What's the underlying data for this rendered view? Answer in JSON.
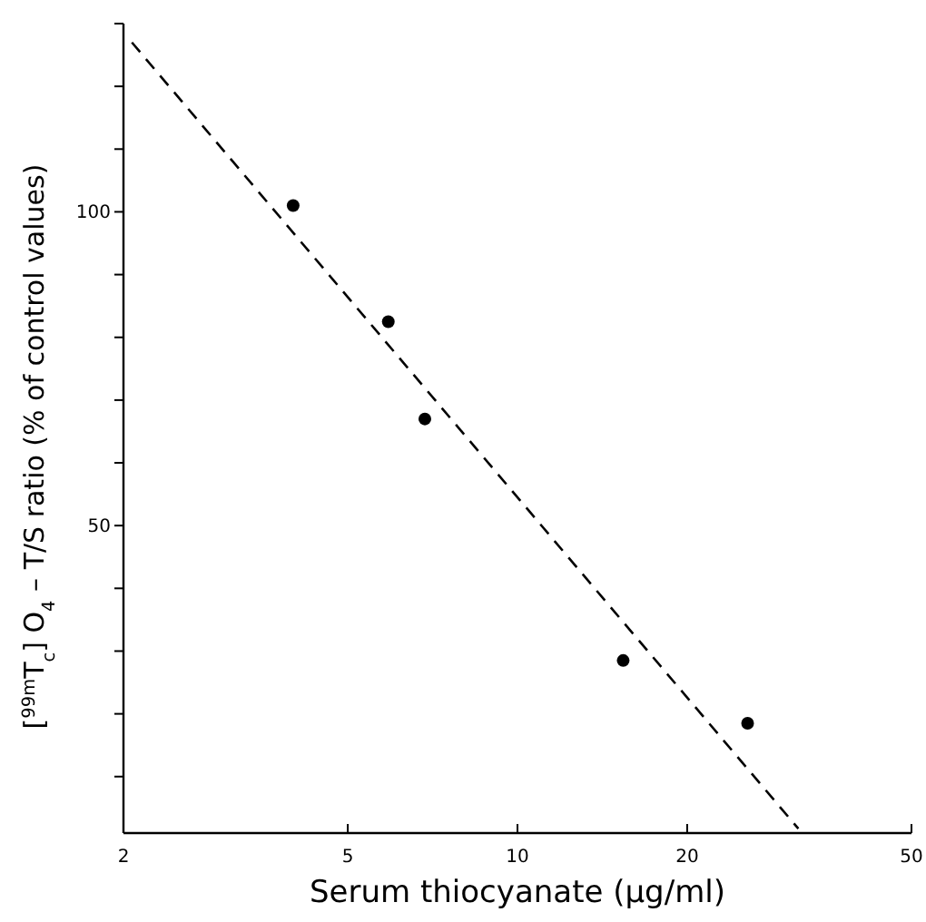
{
  "chart_data": {
    "type": "scatter",
    "xlabel": "Serum thiocyanate (μg/ml)",
    "ylabel": "[$^{99m}$T$_{c}$] O$_{4}$ – T/S ratio (% of control values)",
    "log": "x",
    "xlim": [
      2,
      50
    ],
    "xticks": [
      2,
      5,
      10,
      20,
      50
    ],
    "ylim": [
      1,
      130
    ],
    "yticks": [
      {
        "value": 10,
        "label": null
      },
      {
        "value": 20,
        "label": null
      },
      {
        "value": 30,
        "label": null
      },
      {
        "value": 40,
        "label": null
      },
      50,
      {
        "value": 60,
        "label": null
      },
      {
        "value": 70,
        "label": null
      },
      {
        "value": 80,
        "label": null
      },
      {
        "value": 90,
        "label": null
      },
      100,
      {
        "value": 110,
        "label": null
      },
      {
        "value": 120,
        "label": null
      },
      {
        "value": 130,
        "label": null
      }
    ],
    "grid": false,
    "series": [
      {
        "color": "#000000",
        "marker": "circle",
        "x": [
          4.0,
          5.9,
          6.85,
          15.4,
          25.6
        ],
        "values": [
          101,
          82.5,
          67,
          28.5,
          18.5
        ]
      },
      {
        "type": "line",
        "color": "#000000",
        "marker": "none",
        "line_style": "dashed",
        "x": [
          2.07,
          31.5
        ],
        "values": [
          127,
          1.7
        ]
      }
    ]
  }
}
